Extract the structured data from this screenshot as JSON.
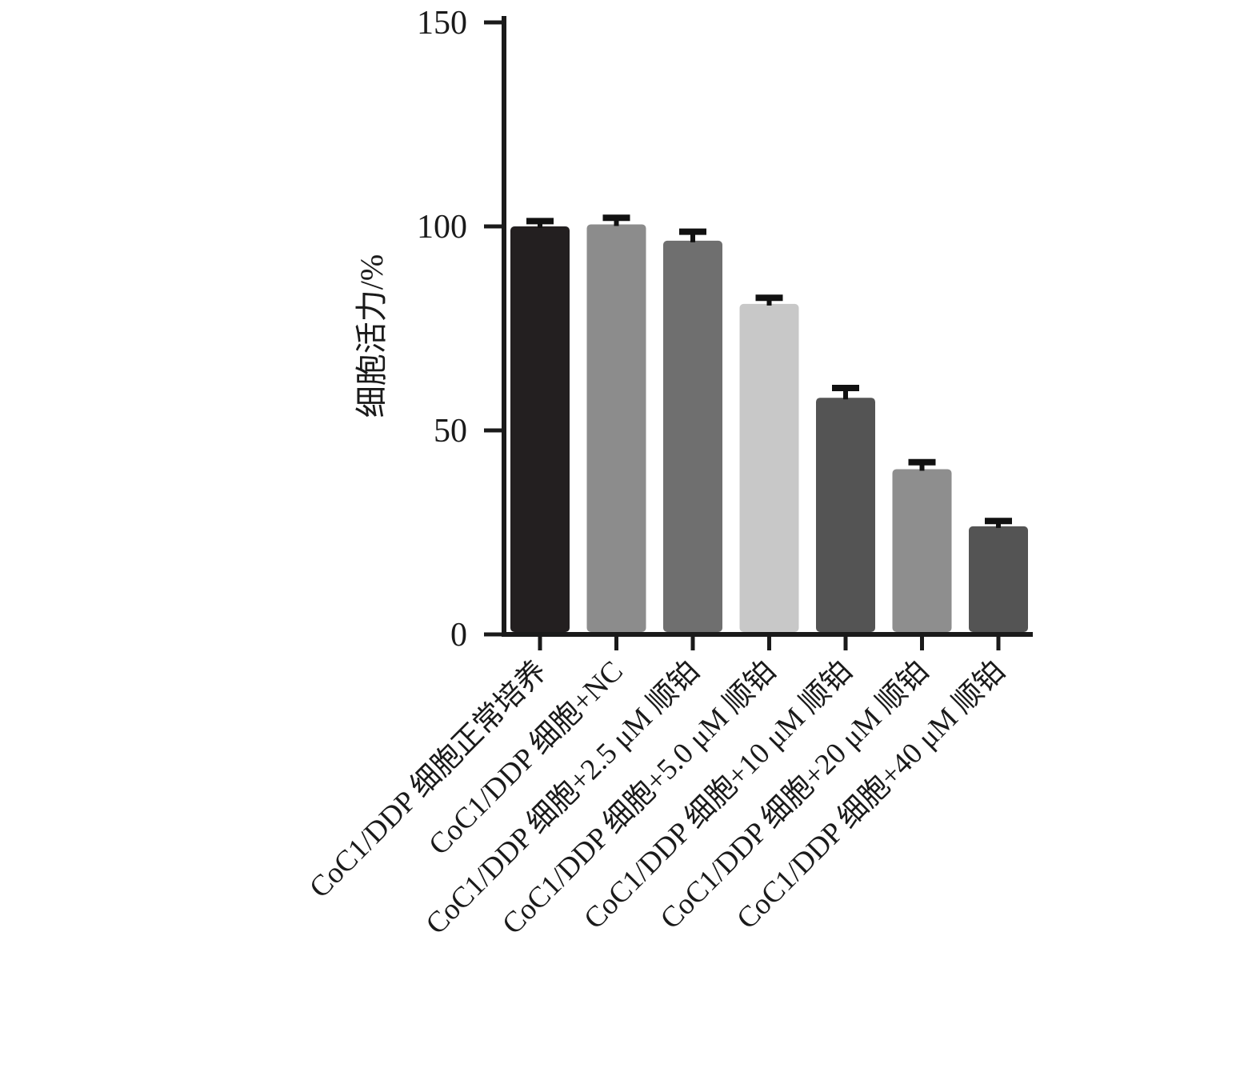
{
  "chart_data": {
    "type": "bar",
    "title": "",
    "xlabel": "",
    "ylabel": "细胞活力/%",
    "ylim": [
      0,
      150
    ],
    "yticks": [
      0,
      50,
      100,
      150
    ],
    "grid": false,
    "categories": [
      "CoC1/DDP 细胞正常培养",
      "CoC1/DDP 细胞+NC",
      "CoC1/DDP 细胞+2.5 μM 顺铂",
      "CoC1/DDP 细胞+5.0 μM 顺铂",
      "CoC1/DDP 细胞+10 μM 顺铂",
      "CoC1/DDP 细胞+20 μM 顺铂",
      "CoC1/DDP 细胞+40 μM 顺铂"
    ],
    "values": [
      100,
      100.5,
      96.5,
      81,
      58,
      40.5,
      26.5
    ],
    "errors": [
      1.3,
      1.6,
      2.2,
      1.5,
      2.4,
      1.7,
      1.3
    ],
    "colors": [
      "#231f20",
      "#8c8c8c",
      "#6f6f6f",
      "#c8c8c8",
      "#545454",
      "#8e8e8e",
      "#545454"
    ],
    "error_bar_color": "#111111"
  }
}
